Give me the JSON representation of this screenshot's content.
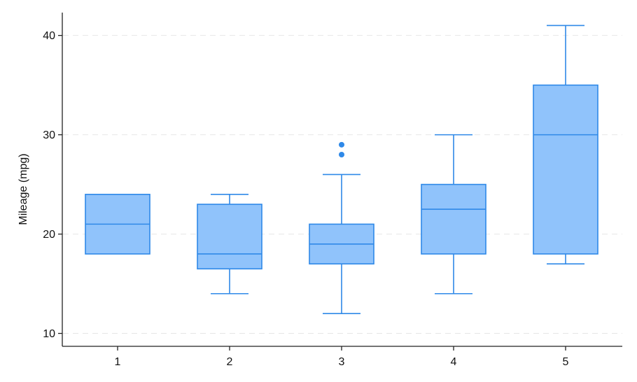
{
  "chart_data": {
    "type": "box",
    "ylabel": "Mileage (mpg)",
    "xlabel": "",
    "ylim": [
      8.7,
      42.3
    ],
    "yticks": [
      10,
      20,
      30,
      40
    ],
    "grid": "horizontal dashed",
    "colors": {
      "box_fill": "#90c3fb",
      "box_stroke": "#2f89e8",
      "outlier": "#2f89e8",
      "grid": "#e6e6e6",
      "axis": "#222222"
    },
    "categories": [
      "1",
      "2",
      "3",
      "4",
      "5"
    ],
    "boxes": [
      {
        "category": "1",
        "min": 18,
        "q1": 18,
        "median": 21,
        "q3": 24,
        "max": 24,
        "outliers": []
      },
      {
        "category": "2",
        "min": 14,
        "q1": 16.5,
        "median": 18,
        "q3": 23,
        "max": 24,
        "outliers": []
      },
      {
        "category": "3",
        "min": 12,
        "q1": 17,
        "median": 19,
        "q3": 21,
        "max": 26,
        "outliers": [
          28,
          29
        ]
      },
      {
        "category": "4",
        "min": 14,
        "q1": 18,
        "median": 22.5,
        "q3": 25,
        "max": 30,
        "outliers": []
      },
      {
        "category": "5",
        "min": 17,
        "q1": 18,
        "median": 30,
        "q3": 35,
        "max": 41,
        "outliers": []
      }
    ]
  }
}
